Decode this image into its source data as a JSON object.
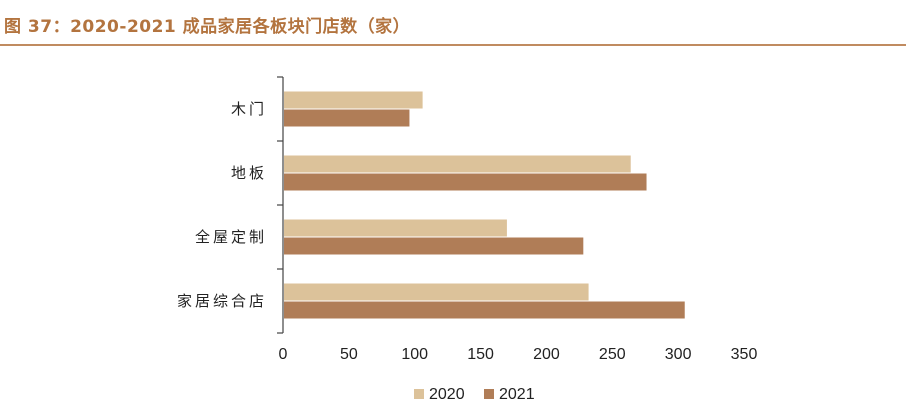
{
  "title": "图 37：2020-2021 成品家居各板块门店数（家）",
  "colors": {
    "title": "#b3743f",
    "rule": "#c08b60",
    "axis": "#444444"
  },
  "chart_data": {
    "type": "bar",
    "orientation": "horizontal",
    "title": "图 37：2020-2021 成品家居各板块门店数（家）",
    "categories": [
      "木门",
      "地板",
      "全屋定制",
      "家居综合店"
    ],
    "series": [
      {
        "name": "2020",
        "color": "#dcc29a",
        "values": [
          106,
          264,
          170,
          232
        ]
      },
      {
        "name": "2021",
        "color": "#b07d57",
        "values": [
          96,
          276,
          228,
          305
        ]
      }
    ],
    "xlim": [
      0,
      350
    ],
    "xticks": [
      "0",
      "50",
      "100",
      "150",
      "200",
      "250",
      "300",
      "350"
    ],
    "grid": false,
    "legend": "bottom-center"
  }
}
